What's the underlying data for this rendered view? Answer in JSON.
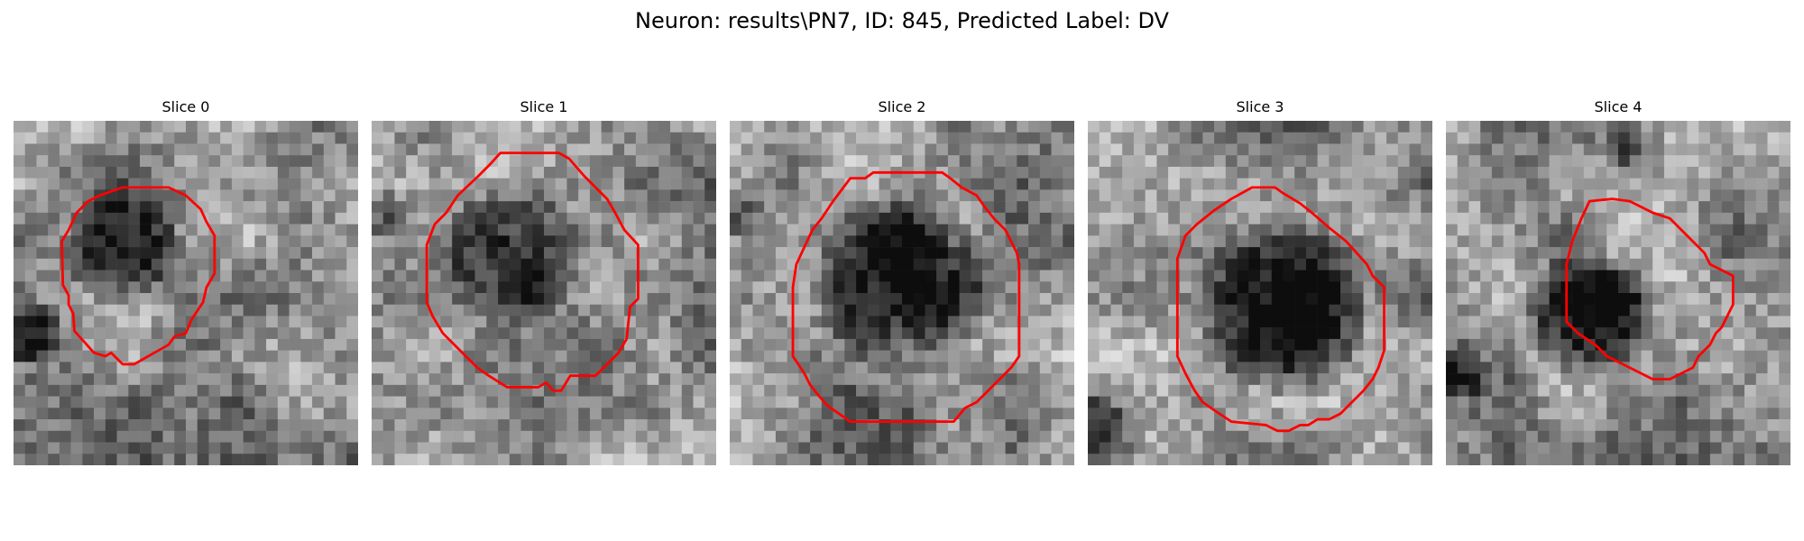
{
  "figure": {
    "title": "Neuron: results\\PN7, ID: 845, Predicted Label: DV"
  },
  "colors": {
    "contour": "#ff0000",
    "background": "#ffffff"
  },
  "slices": [
    {
      "label": "Slice 0"
    },
    {
      "label": "Slice 1"
    },
    {
      "label": "Slice 2"
    },
    {
      "label": "Slice 3"
    },
    {
      "label": "Slice 4"
    }
  ]
}
